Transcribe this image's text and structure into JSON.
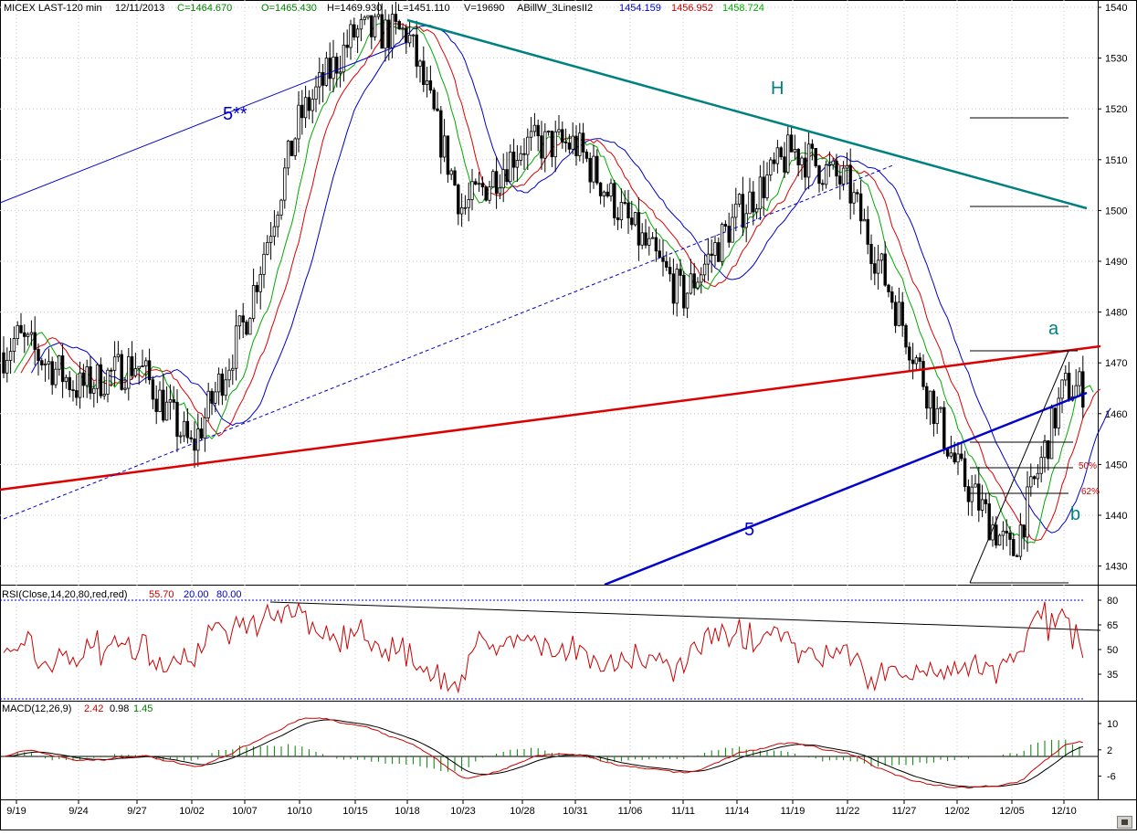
{
  "header": {
    "symbol": "MICEX LAST-120 min",
    "date": "12/11/2013",
    "close": "C=1464.670",
    "open": "O=1465.430",
    "high": "H=1469.930",
    "low": "L=1451.110",
    "volume": "V=19690",
    "indicator": "ABillW_3LinesII2",
    "line1": "1454.159",
    "line2": "1456.952",
    "line3": "1458.724"
  },
  "colors": {
    "candle": "#000000",
    "alligator_jaw": "#0000cc",
    "alligator_teeth": "#dd0000",
    "alligator_lips": "#00aa00",
    "trend_teal": "#008080",
    "trend_red": "#dd0000",
    "trend_blue": "#0000cc",
    "rsi": "#cc0000",
    "macd_signal": "#000000",
    "macd_hist": "#008000"
  },
  "rsi": {
    "label": "RSI(Close,14,20,80,red,red)",
    "value": "55.70",
    "lower": "20.00",
    "upper": "80.00",
    "ticks": [
      "80",
      "65",
      "50",
      "35"
    ]
  },
  "macd": {
    "label": "MACD(12,26,9)",
    "v1": "2.42",
    "v2": "0.98",
    "v3": "1.45",
    "ticks": [
      "10",
      "2",
      "-6"
    ]
  },
  "annotations": {
    "wave_5_star": "5**",
    "wave_5": "5",
    "head": "H",
    "wave_a": "a",
    "wave_b": "b",
    "fib_50": "50%",
    "fib_62": "62%"
  },
  "icons": [
    "scroll-right-icon"
  ],
  "chart_data": {
    "type": "candlestick",
    "title": "MICEX LAST-120 min",
    "y_axis_ticks": [
      1540,
      1530,
      1520,
      1510,
      1500,
      1490,
      1480,
      1470,
      1460,
      1450,
      1440,
      1430
    ],
    "ylim": [
      1424,
      1541
    ],
    "x_tick_labels": [
      "9/19",
      "9/24",
      "9/27",
      "10/02",
      "10/07",
      "10/10",
      "10/15",
      "10/18",
      "10/23",
      "10/28",
      "10/31",
      "11/06",
      "11/11",
      "11/14",
      "11/19",
      "11/22",
      "11/27",
      "12/02",
      "12/05",
      "12/10"
    ],
    "close_path": [
      {
        "date": "9/19",
        "value": 1475
      },
      {
        "date": "9/24",
        "value": 1465
      },
      {
        "date": "9/27",
        "value": 1470
      },
      {
        "date": "10/02",
        "value": 1453
      },
      {
        "date": "10/07",
        "value": 1478
      },
      {
        "date": "10/10",
        "value": 1518
      },
      {
        "date": "10/15",
        "value": 1535
      },
      {
        "date": "10/18",
        "value": 1535
      },
      {
        "date": "10/23",
        "value": 1500
      },
      {
        "date": "10/28",
        "value": 1513
      },
      {
        "date": "10/31",
        "value": 1513
      },
      {
        "date": "11/06",
        "value": 1497
      },
      {
        "date": "11/11",
        "value": 1483
      },
      {
        "date": "11/14",
        "value": 1499
      },
      {
        "date": "11/19",
        "value": 1512
      },
      {
        "date": "11/22",
        "value": 1505
      },
      {
        "date": "11/27",
        "value": 1477
      },
      {
        "date": "12/02",
        "value": 1449
      },
      {
        "date": "12/05",
        "value": 1432
      },
      {
        "date": "12/10",
        "value": 1465
      }
    ],
    "rsi_range": [
      20,
      80
    ],
    "macd_range": [
      -8,
      12
    ]
  }
}
